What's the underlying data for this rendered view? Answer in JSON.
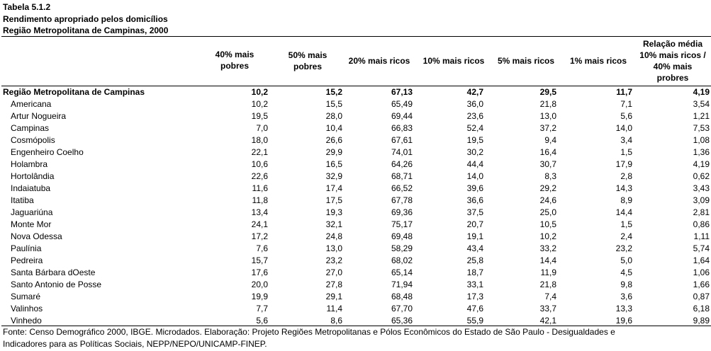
{
  "titles": {
    "line1": "Tabela 5.1.2",
    "line2": "Rendimento apropriado pelos domicílios",
    "line3": "Região Metropolitana de Campinas, 2000"
  },
  "columns": {
    "c1": [
      "40% mais",
      "pobres"
    ],
    "c2": [
      "50% mais",
      "pobres"
    ],
    "c3": [
      "20% mais ricos"
    ],
    "c4": [
      "10% mais ricos"
    ],
    "c5": [
      "5% mais ricos"
    ],
    "c6": [
      "1% mais ricos"
    ],
    "c7": [
      "Relação média",
      "10% mais ricos /",
      "40% mais",
      "probres"
    ]
  },
  "total_row": {
    "name": "Região Metropolitana de Campinas",
    "values": [
      "10,2",
      "15,2",
      "67,13",
      "42,7",
      "29,5",
      "11,7",
      "4,19"
    ]
  },
  "rows": [
    {
      "name": "Americana",
      "values": [
        "10,2",
        "15,5",
        "65,49",
        "36,0",
        "21,8",
        "7,1",
        "3,54"
      ]
    },
    {
      "name": "Artur Nogueira",
      "values": [
        "19,5",
        "28,0",
        "69,44",
        "23,6",
        "13,0",
        "5,6",
        "1,21"
      ]
    },
    {
      "name": "Campinas",
      "values": [
        "7,0",
        "10,4",
        "66,83",
        "52,4",
        "37,2",
        "14,0",
        "7,53"
      ]
    },
    {
      "name": "Cosmópolis",
      "values": [
        "18,0",
        "26,6",
        "67,61",
        "19,5",
        "9,4",
        "3,4",
        "1,08"
      ]
    },
    {
      "name": "Engenheiro Coelho",
      "values": [
        "22,1",
        "29,9",
        "74,01",
        "30,2",
        "16,4",
        "1,5",
        "1,36"
      ]
    },
    {
      "name": "Holambra",
      "values": [
        "10,6",
        "16,5",
        "64,26",
        "44,4",
        "30,7",
        "17,9",
        "4,19"
      ]
    },
    {
      "name": "Hortolândia",
      "values": [
        "22,6",
        "32,9",
        "68,71",
        "14,0",
        "8,3",
        "2,8",
        "0,62"
      ]
    },
    {
      "name": "Indaiatuba",
      "values": [
        "11,6",
        "17,4",
        "66,52",
        "39,6",
        "29,2",
        "14,3",
        "3,43"
      ]
    },
    {
      "name": "Itatiba",
      "values": [
        "11,8",
        "17,5",
        "67,78",
        "36,6",
        "24,6",
        "8,9",
        "3,09"
      ]
    },
    {
      "name": "Jaguariúna",
      "values": [
        "13,4",
        "19,3",
        "69,36",
        "37,5",
        "25,0",
        "14,4",
        "2,81"
      ]
    },
    {
      "name": "Monte Mor",
      "values": [
        "24,1",
        "32,1",
        "75,17",
        "20,7",
        "10,5",
        "1,5",
        "0,86"
      ]
    },
    {
      "name": "Nova Odessa",
      "values": [
        "17,2",
        "24,8",
        "69,48",
        "19,1",
        "10,2",
        "2,4",
        "1,11"
      ]
    },
    {
      "name": "Paulínia",
      "values": [
        "7,6",
        "13,0",
        "58,29",
        "43,4",
        "33,2",
        "23,2",
        "5,74"
      ]
    },
    {
      "name": "Pedreira",
      "values": [
        "15,7",
        "23,2",
        "68,02",
        "25,8",
        "14,4",
        "5,0",
        "1,64"
      ]
    },
    {
      "name": "Santa Bárbara dOeste",
      "values": [
        "17,6",
        "27,0",
        "65,14",
        "18,7",
        "11,9",
        "4,5",
        "1,06"
      ]
    },
    {
      "name": "Santo Antonio de Posse",
      "values": [
        "20,0",
        "27,8",
        "71,94",
        "33,1",
        "21,8",
        "9,8",
        "1,66"
      ]
    },
    {
      "name": "Sumaré",
      "values": [
        "19,9",
        "29,1",
        "68,48",
        "17,3",
        "7,4",
        "3,6",
        "0,87"
      ]
    },
    {
      "name": "Valinhos",
      "values": [
        "7,7",
        "11,4",
        "67,70",
        "47,6",
        "33,7",
        "13,3",
        "6,18"
      ]
    },
    {
      "name": "Vinhedo",
      "values": [
        "5,6",
        "8,6",
        "65,36",
        "55,9",
        "42,1",
        "19,6",
        "9,89"
      ]
    }
  ],
  "footer": {
    "line1": "Fonte: Censo Demográfico 2000, IBGE. Microdados. Elaboração: Projeto Regiões Metropolitanas e Pólos Econômicos do Estado de São Paulo - Desigualdades e",
    "line2": "Indicadores para as Políticas Sociais, NEPP/NEPO/UNICAMP-FINEP."
  }
}
